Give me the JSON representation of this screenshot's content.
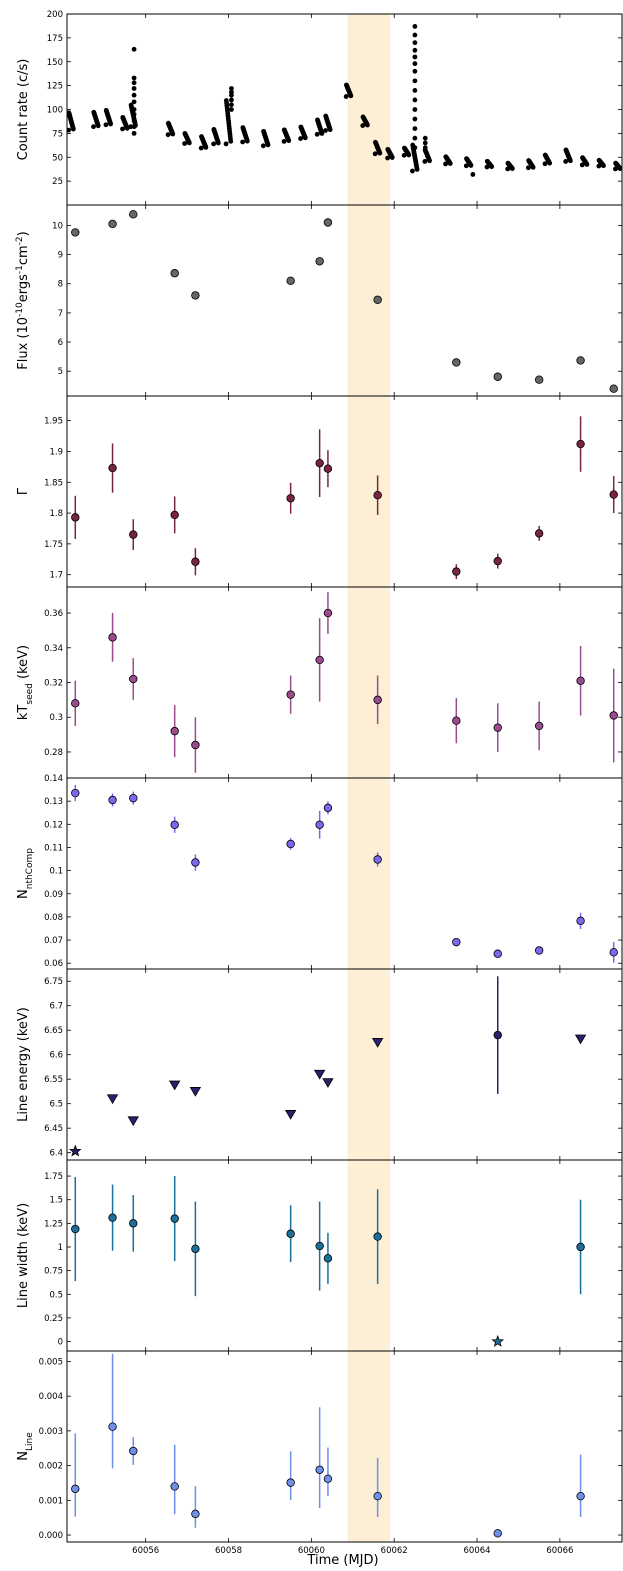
{
  "figure": {
    "xlabel": "Time (MJD)",
    "xlim": [
      60054.1,
      60067.5
    ],
    "xticks": [
      60056,
      60058,
      60060,
      60062,
      60064,
      60066
    ],
    "highlight": {
      "x": [
        60060.87,
        60061.9
      ],
      "color": "#fdefd6"
    }
  },
  "chart_data": [
    {
      "type": "scatter",
      "ylabel": "Count rate (c/s)",
      "ylim": [
        0,
        200
      ],
      "yticks": [
        25,
        50,
        75,
        100,
        125,
        150,
        175,
        200
      ],
      "color": "#000000",
      "series": [
        {
          "x": [
            60054.2,
            60054.8,
            60055.1,
            60055.5,
            60055.7,
            60056.6,
            60057.0,
            60057.4,
            60057.7,
            60058.0,
            60058.4,
            60058.9,
            60059.4,
            60059.8,
            60060.2,
            60060.4,
            60060.9,
            60061.3,
            60061.6,
            60061.9,
            60062.3,
            60062.5,
            60062.8,
            60063.3,
            60063.8,
            60064.3,
            60064.8,
            60065.3,
            60065.7,
            60066.2,
            60066.6,
            60067.0,
            60067.4
          ],
          "y": [
            88,
            90,
            92,
            86,
            94,
            80,
            70,
            66,
            72,
            88,
            74,
            70,
            73,
            76,
            82,
            86,
            120,
            88,
            60,
            54,
            56,
            50,
            52,
            47,
            45,
            43,
            41,
            43,
            48,
            52,
            46,
            44,
            41
          ],
          "spread": [
            12,
            10,
            10,
            8,
            15,
            8,
            7,
            8,
            10,
            30,
            10,
            10,
            8,
            8,
            10,
            10,
            8,
            6,
            8,
            6,
            5,
            18,
            8,
            5,
            5,
            4,
            4,
            5,
            6,
            8,
            5,
            4,
            4
          ]
        }
      ],
      "flares": [
        {
          "x": 60055.72,
          "y": [
            75,
            82,
            88,
            95,
            100,
            108,
            115,
            122,
            128,
            133,
            163
          ]
        },
        {
          "x": 60058.07,
          "y": [
            100,
            105,
            110,
            115,
            118,
            122
          ]
        },
        {
          "x": 60062.5,
          "y": [
            60,
            70,
            80,
            90,
            100,
            110,
            120,
            130,
            140,
            148,
            155,
            162,
            170,
            178,
            187
          ]
        },
        {
          "x": 60062.75,
          "y": [
            60,
            65,
            70
          ]
        },
        {
          "x": 60063.9,
          "y": [
            32
          ]
        }
      ]
    },
    {
      "type": "scatter",
      "ylabel": "Flux (10$^{-10}$ergs$^{-1}$cm$^{-2}$)",
      "ylim": [
        4.15,
        10.7
      ],
      "yticks": [
        5,
        6,
        7,
        8,
        9,
        10
      ],
      "color": "#666666",
      "series": [
        {
          "x": [
            60054.3,
            60055.2,
            60055.7,
            60056.7,
            60057.2,
            60059.5,
            60060.2,
            60060.4,
            60061.6,
            60063.5,
            60064.5,
            60065.5,
            60066.5,
            60067.3
          ],
          "y": [
            9.76,
            10.05,
            10.38,
            8.36,
            7.6,
            8.1,
            8.77,
            10.1,
            7.45,
            5.3,
            4.81,
            4.71,
            5.37,
            4.4
          ]
        }
      ]
    },
    {
      "type": "scatter",
      "ylabel": "Γ",
      "ylim": [
        1.68,
        1.99
      ],
      "yticks": [
        1.7,
        1.75,
        1.8,
        1.85,
        1.9,
        1.95
      ],
      "color": "#7a2443",
      "series": [
        {
          "x": [
            60054.3,
            60055.2,
            60055.7,
            60056.7,
            60057.2,
            60059.5,
            60060.2,
            60060.4,
            60061.6,
            60063.5,
            60064.5,
            60065.5,
            60066.5,
            60067.3
          ],
          "y": [
            1.793,
            1.873,
            1.765,
            1.797,
            1.721,
            1.824,
            1.881,
            1.872,
            1.829,
            1.705,
            1.722,
            1.767,
            1.912,
            1.83
          ],
          "err": [
            0.035,
            0.04,
            0.025,
            0.03,
            0.022,
            0.025,
            0.055,
            0.03,
            0.032,
            0.012,
            0.012,
            0.012,
            0.045,
            0.03
          ]
        }
      ]
    },
    {
      "type": "scatter",
      "ylabel": "kT$_{\\rm seed}$ (keV)",
      "ylim": [
        0.265,
        0.375
      ],
      "yticks": [
        0.28,
        0.3,
        0.32,
        0.34,
        0.36
      ],
      "color": "#9a4a8e",
      "series": [
        {
          "x": [
            60054.3,
            60055.2,
            60055.7,
            60056.7,
            60057.2,
            60059.5,
            60060.2,
            60060.4,
            60061.6,
            60063.5,
            60064.5,
            60065.5,
            60066.5,
            60067.3
          ],
          "y": [
            0.308,
            0.346,
            0.322,
            0.292,
            0.284,
            0.313,
            0.333,
            0.36,
            0.31,
            0.298,
            0.294,
            0.295,
            0.321,
            0.301
          ],
          "err": [
            0.013,
            0.014,
            0.012,
            0.015,
            0.016,
            0.011,
            0.024,
            0.012,
            0.014,
            0.013,
            0.014,
            0.014,
            0.02,
            0.027
          ]
        }
      ]
    },
    {
      "type": "scatter",
      "ylabel": "N$_{\\rm nthComp}$",
      "ylim": [
        0.0575,
        0.14
      ],
      "yticks": [
        0.06,
        0.07,
        0.08,
        0.09,
        0.1,
        0.11,
        0.12,
        0.13,
        0.14
      ],
      "color": "#7b68ee",
      "series": [
        {
          "x": [
            60054.3,
            60055.2,
            60055.7,
            60056.7,
            60057.2,
            60059.5,
            60060.2,
            60060.4,
            60061.6,
            60063.5,
            60064.5,
            60065.5,
            60066.5,
            60067.3
          ],
          "y": [
            0.1335,
            0.1305,
            0.1313,
            0.1198,
            0.1035,
            0.1115,
            0.1198,
            0.1271,
            0.1048,
            0.0691,
            0.0641,
            0.0655,
            0.0783,
            0.0647
          ],
          "err": [
            0.0035,
            0.0028,
            0.0028,
            0.0035,
            0.0035,
            0.0025,
            0.006,
            0.0028,
            0.003,
            0.0015,
            0.0015,
            0.0015,
            0.0035,
            0.0045
          ]
        }
      ]
    },
    {
      "type": "scatter",
      "ylabel": "Line energy (keV)",
      "ylim": [
        6.385,
        6.775
      ],
      "yticks": [
        6.4,
        6.45,
        6.5,
        6.55,
        6.6,
        6.65,
        6.7,
        6.75
      ],
      "color": "#2c1f6b",
      "series": [
        {
          "marker": "triangle-down",
          "x": [
            60055.2,
            60055.7,
            60056.7,
            60057.2,
            60059.5,
            60060.2,
            60060.4,
            60061.6,
            60066.5
          ],
          "y": [
            6.51,
            6.465,
            6.538,
            6.525,
            6.478,
            6.56,
            6.543,
            6.625,
            6.632
          ]
        },
        {
          "marker": "star",
          "x": [
            60054.3
          ],
          "y": [
            6.403
          ]
        },
        {
          "marker": "circle",
          "x": [
            60064.5
          ],
          "y": [
            6.64
          ],
          "err": [
            0.12
          ]
        }
      ]
    },
    {
      "type": "scatter",
      "ylabel": "Line width (keV)",
      "ylim": [
        -0.1,
        1.92
      ],
      "yticks": [
        0,
        0.25,
        0.5,
        0.75,
        1,
        1.25,
        1.5,
        1.75
      ],
      "color": "#1a6f9b",
      "series": [
        {
          "marker": "circle",
          "x": [
            60054.3,
            60055.2,
            60055.7,
            60056.7,
            60057.2,
            60059.5,
            60060.2,
            60060.4,
            60061.6,
            60066.5
          ],
          "y": [
            1.19,
            1.31,
            1.25,
            1.3,
            0.98,
            1.14,
            1.01,
            0.88,
            1.11,
            1.0
          ],
          "err": [
            0.55,
            0.35,
            0.3,
            0.45,
            0.5,
            0.3,
            0.47,
            0.27,
            0.5,
            0.5
          ]
        },
        {
          "marker": "star",
          "x": [
            60064.5
          ],
          "y": [
            0.0
          ]
        }
      ]
    },
    {
      "type": "scatter",
      "ylabel": "N$_{\\rm Line}$",
      "ylim": [
        -0.0002,
        0.0053
      ],
      "yticks": [
        0,
        0.001,
        0.002,
        0.003,
        0.004,
        0.005
      ],
      "yticklabels": [
        "0.000",
        "0.001",
        "0.002",
        "0.003",
        "0.004",
        "0.005"
      ],
      "color": "#6f8fe8",
      "series": [
        {
          "marker": "circle",
          "x": [
            60054.3,
            60055.2,
            60055.7,
            60056.7,
            60057.2,
            60059.5,
            60060.2,
            60060.4,
            60061.6,
            60066.5
          ],
          "y": [
            0.00133,
            0.00312,
            0.00242,
            0.0014,
            0.00061,
            0.00151,
            0.00188,
            0.00162,
            0.00112,
            0.00112
          ],
          "err_lo": [
            0.0008,
            0.0012,
            0.0004,
            0.0008,
            0.0004,
            0.0005,
            0.0011,
            0.0005,
            0.0006,
            0.0006
          ],
          "err_hi": [
            0.0016,
            0.0021,
            0.0004,
            0.0012,
            0.0008,
            0.0009,
            0.0018,
            0.0009,
            0.0011,
            0.0012
          ]
        },
        {
          "marker": "circle",
          "x": [
            60064.5
          ],
          "y": [
            5e-05
          ]
        }
      ]
    }
  ]
}
